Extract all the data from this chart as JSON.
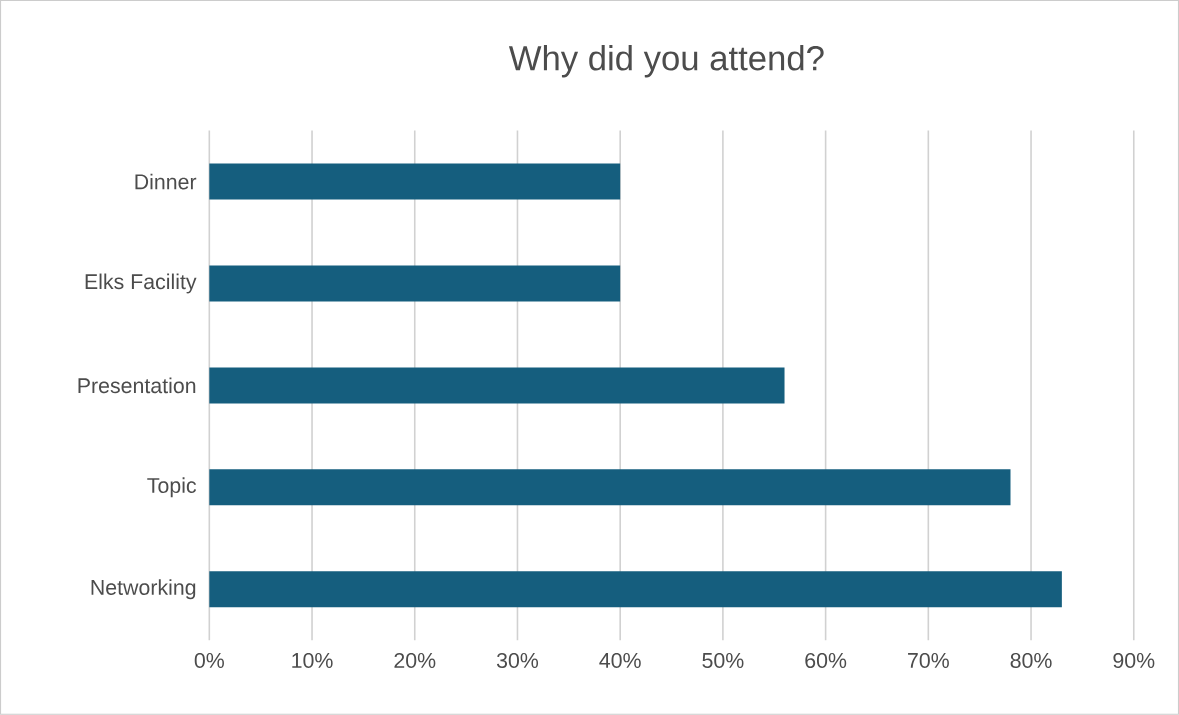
{
  "chart_data": {
    "type": "bar",
    "orientation": "horizontal",
    "title": "Why did you attend?",
    "categories": [
      "Dinner",
      "Elks Facility",
      "Presentation",
      "Topic",
      "Networking"
    ],
    "values": [
      40,
      40,
      56,
      78,
      83
    ],
    "color": "#155e7e",
    "xlim": [
      0,
      90
    ],
    "xticks": [
      {
        "value": 0,
        "label": "0%"
      },
      {
        "value": 10,
        "label": "10%"
      },
      {
        "value": 20,
        "label": "20%"
      },
      {
        "value": 30,
        "label": "30%"
      },
      {
        "value": 40,
        "label": "40%"
      },
      {
        "value": 50,
        "label": "50%"
      },
      {
        "value": 60,
        "label": "60%"
      },
      {
        "value": 70,
        "label": "70%"
      },
      {
        "value": 80,
        "label": "80%"
      },
      {
        "value": 90,
        "label": "90%"
      }
    ],
    "grid": "x"
  }
}
